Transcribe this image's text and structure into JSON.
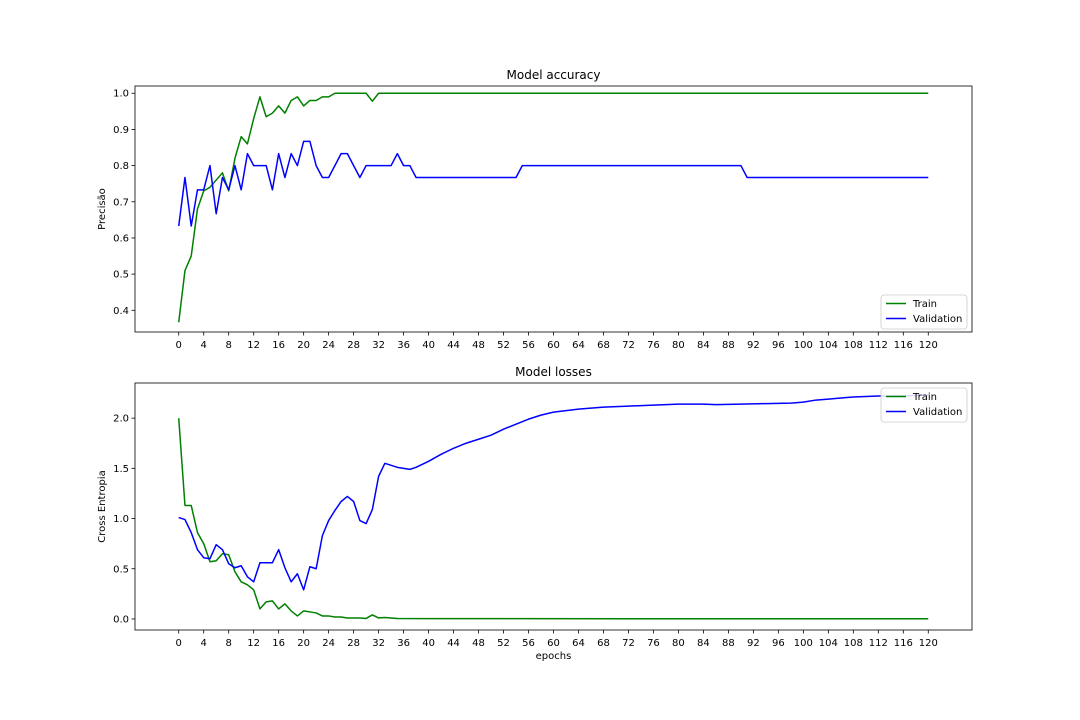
{
  "chart_data": [
    {
      "type": "line",
      "title": "Model accuracy",
      "xlabel": "",
      "ylabel": "Precisão",
      "xlim": [
        -7,
        127
      ],
      "ylim": [
        0.34,
        1.02
      ],
      "xticks": [
        0,
        4,
        8,
        12,
        16,
        20,
        24,
        28,
        32,
        36,
        40,
        44,
        48,
        52,
        56,
        60,
        64,
        68,
        72,
        76,
        80,
        84,
        88,
        92,
        96,
        100,
        104,
        108,
        112,
        116,
        120
      ],
      "yticks": [
        0.4,
        0.5,
        0.6,
        0.7,
        0.8,
        0.9,
        1.0
      ],
      "ytick_labels": [
        "0.4",
        "0.5",
        "0.6",
        "0.7",
        "0.8",
        "0.9",
        "1.0"
      ],
      "grid": false,
      "legend": "lower right",
      "series": [
        {
          "name": "Train",
          "color": "#008000",
          "points": [
            [
              0,
              0.367
            ],
            [
              1,
              0.51
            ],
            [
              2,
              0.55
            ],
            [
              3,
              0.68
            ],
            [
              4,
              0.73
            ],
            [
              5,
              0.74
            ],
            [
              6,
              0.76
            ],
            [
              7,
              0.78
            ],
            [
              8,
              0.73
            ],
            [
              9,
              0.82
            ],
            [
              10,
              0.88
            ],
            [
              11,
              0.86
            ],
            [
              12,
              0.93
            ],
            [
              13,
              0.99
            ],
            [
              14,
              0.935
            ],
            [
              15,
              0.945
            ],
            [
              16,
              0.965
            ],
            [
              17,
              0.945
            ],
            [
              18,
              0.98
            ],
            [
              19,
              0.99
            ],
            [
              20,
              0.965
            ],
            [
              21,
              0.98
            ],
            [
              22,
              0.98
            ],
            [
              23,
              0.99
            ],
            [
              24,
              0.99
            ],
            [
              25,
              1.0
            ],
            [
              26,
              1.0
            ],
            [
              27,
              1.0
            ],
            [
              28,
              1.0
            ],
            [
              29,
              1.0
            ],
            [
              30,
              1.0
            ],
            [
              31,
              0.978
            ],
            [
              32,
              1.0
            ],
            [
              120,
              1.0
            ]
          ]
        },
        {
          "name": "Validation",
          "color": "#0000ff",
          "points": [
            [
              0,
              0.633
            ],
            [
              1,
              0.767
            ],
            [
              2,
              0.633
            ],
            [
              3,
              0.733
            ],
            [
              4,
              0.733
            ],
            [
              5,
              0.8
            ],
            [
              6,
              0.667
            ],
            [
              7,
              0.767
            ],
            [
              8,
              0.733
            ],
            [
              9,
              0.8
            ],
            [
              10,
              0.733
            ],
            [
              11,
              0.833
            ],
            [
              12,
              0.8
            ],
            [
              13,
              0.8
            ],
            [
              14,
              0.8
            ],
            [
              15,
              0.733
            ],
            [
              16,
              0.833
            ],
            [
              17,
              0.767
            ],
            [
              18,
              0.833
            ],
            [
              19,
              0.8
            ],
            [
              20,
              0.867
            ],
            [
              21,
              0.867
            ],
            [
              22,
              0.8
            ],
            [
              23,
              0.767
            ],
            [
              24,
              0.767
            ],
            [
              25,
              0.8
            ],
            [
              26,
              0.833
            ],
            [
              27,
              0.833
            ],
            [
              28,
              0.8
            ],
            [
              29,
              0.767
            ],
            [
              30,
              0.8
            ],
            [
              34,
              0.8
            ],
            [
              35,
              0.833
            ],
            [
              36,
              0.8
            ],
            [
              37,
              0.8
            ],
            [
              38,
              0.767
            ],
            [
              54,
              0.767
            ],
            [
              55,
              0.8
            ],
            [
              90,
              0.8
            ],
            [
              91,
              0.767
            ],
            [
              120,
              0.767
            ]
          ]
        }
      ]
    },
    {
      "type": "line",
      "title": "Model losses",
      "xlabel": "epochs",
      "ylabel": "Cross Entropia",
      "xlim": [
        -7,
        127
      ],
      "ylim": [
        -0.11,
        2.35
      ],
      "xticks": [
        0,
        4,
        8,
        12,
        16,
        20,
        24,
        28,
        32,
        36,
        40,
        44,
        48,
        52,
        56,
        60,
        64,
        68,
        72,
        76,
        80,
        84,
        88,
        92,
        96,
        100,
        104,
        108,
        112,
        116,
        120
      ],
      "yticks": [
        0.0,
        0.5,
        1.0,
        1.5,
        2.0
      ],
      "ytick_labels": [
        "0.0",
        "0.5",
        "1.0",
        "1.5",
        "2.0"
      ],
      "grid": false,
      "legend": "upper right",
      "series": [
        {
          "name": "Train",
          "color": "#008000",
          "points": [
            [
              0,
              2.0
            ],
            [
              1,
              1.13
            ],
            [
              2,
              1.13
            ],
            [
              3,
              0.86
            ],
            [
              4,
              0.75
            ],
            [
              5,
              0.57
            ],
            [
              6,
              0.58
            ],
            [
              7,
              0.65
            ],
            [
              8,
              0.64
            ],
            [
              9,
              0.47
            ],
            [
              10,
              0.37
            ],
            [
              11,
              0.34
            ],
            [
              12,
              0.29
            ],
            [
              13,
              0.1
            ],
            [
              14,
              0.17
            ],
            [
              15,
              0.18
            ],
            [
              16,
              0.1
            ],
            [
              17,
              0.15
            ],
            [
              18,
              0.08
            ],
            [
              19,
              0.03
            ],
            [
              20,
              0.08
            ],
            [
              21,
              0.07
            ],
            [
              22,
              0.06
            ],
            [
              23,
              0.03
            ],
            [
              24,
              0.03
            ],
            [
              25,
              0.02
            ],
            [
              26,
              0.02
            ],
            [
              27,
              0.01
            ],
            [
              28,
              0.01
            ],
            [
              29,
              0.01
            ],
            [
              30,
              0.005
            ],
            [
              31,
              0.04
            ],
            [
              32,
              0.01
            ],
            [
              33,
              0.015
            ],
            [
              34,
              0.01
            ],
            [
              35,
              0.005
            ],
            [
              40,
              0.003
            ],
            [
              120,
              0.002
            ]
          ]
        },
        {
          "name": "Validation",
          "color": "#0000ff",
          "points": [
            [
              0,
              1.01
            ],
            [
              1,
              0.99
            ],
            [
              2,
              0.86
            ],
            [
              3,
              0.69
            ],
            [
              4,
              0.61
            ],
            [
              5,
              0.6
            ],
            [
              6,
              0.74
            ],
            [
              7,
              0.69
            ],
            [
              8,
              0.55
            ],
            [
              9,
              0.51
            ],
            [
              10,
              0.53
            ],
            [
              11,
              0.42
            ],
            [
              12,
              0.37
            ],
            [
              13,
              0.56
            ],
            [
              14,
              0.56
            ],
            [
              15,
              0.56
            ],
            [
              16,
              0.69
            ],
            [
              17,
              0.51
            ],
            [
              18,
              0.37
            ],
            [
              19,
              0.45
            ],
            [
              20,
              0.29
            ],
            [
              21,
              0.52
            ],
            [
              22,
              0.5
            ],
            [
              23,
              0.83
            ],
            [
              24,
              0.98
            ],
            [
              25,
              1.08
            ],
            [
              26,
              1.17
            ],
            [
              27,
              1.22
            ],
            [
              28,
              1.17
            ],
            [
              29,
              0.98
            ],
            [
              30,
              0.95
            ],
            [
              31,
              1.09
            ],
            [
              32,
              1.42
            ],
            [
              33,
              1.55
            ],
            [
              34,
              1.53
            ],
            [
              35,
              1.51
            ],
            [
              36,
              1.5
            ],
            [
              37,
              1.49
            ],
            [
              38,
              1.51
            ],
            [
              39,
              1.54
            ],
            [
              40,
              1.57
            ],
            [
              42,
              1.64
            ],
            [
              44,
              1.7
            ],
            [
              46,
              1.75
            ],
            [
              48,
              1.79
            ],
            [
              50,
              1.83
            ],
            [
              52,
              1.89
            ],
            [
              54,
              1.94
            ],
            [
              56,
              1.99
            ],
            [
              58,
              2.03
            ],
            [
              60,
              2.06
            ],
            [
              64,
              2.09
            ],
            [
              68,
              2.11
            ],
            [
              72,
              2.12
            ],
            [
              76,
              2.13
            ],
            [
              80,
              2.14
            ],
            [
              84,
              2.14
            ],
            [
              86,
              2.135
            ],
            [
              90,
              2.14
            ],
            [
              94,
              2.145
            ],
            [
              98,
              2.15
            ],
            [
              100,
              2.16
            ],
            [
              102,
              2.18
            ],
            [
              104,
              2.19
            ],
            [
              106,
              2.2
            ],
            [
              108,
              2.21
            ],
            [
              112,
              2.22
            ],
            [
              116,
              2.22
            ],
            [
              120,
              2.23
            ]
          ]
        }
      ]
    }
  ]
}
